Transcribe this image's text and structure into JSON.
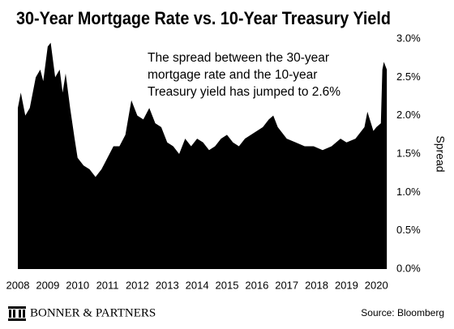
{
  "chart_data": {
    "type": "area",
    "title": "30-Year Mortgage Rate vs. 10-Year Treasury Yield",
    "annotation": [
      "The spread between the 30-year",
      "mortgage rate and the 10-year",
      "Treasury yield has jumped to 2.6%"
    ],
    "y_label": "Spread",
    "x": [
      2008.0,
      2008.1,
      2008.25,
      2008.4,
      2008.6,
      2008.75,
      2008.85,
      2009.0,
      2009.1,
      2009.25,
      2009.4,
      2009.5,
      2009.6,
      2009.75,
      2009.9,
      2010.0,
      2010.2,
      2010.4,
      2010.6,
      2010.8,
      2011.0,
      2011.2,
      2011.4,
      2011.6,
      2011.8,
      2011.9,
      2012.0,
      2012.2,
      2012.4,
      2012.6,
      2012.8,
      2013.0,
      2013.2,
      2013.4,
      2013.6,
      2013.8,
      2014.0,
      2014.2,
      2014.4,
      2014.6,
      2014.8,
      2015.0,
      2015.2,
      2015.4,
      2015.6,
      2015.8,
      2016.0,
      2016.2,
      2016.4,
      2016.55,
      2016.7,
      2016.9,
      2017.0,
      2017.3,
      2017.6,
      2017.9,
      2018.2,
      2018.5,
      2018.8,
      2019.0,
      2019.3,
      2019.6,
      2019.7,
      2019.9,
      2020.0,
      2020.15,
      2020.2,
      2020.25,
      2020.35
    ],
    "series": [
      {
        "name": "Spread",
        "color": "#000000",
        "values": [
          2.1,
          2.3,
          2.0,
          2.1,
          2.5,
          2.6,
          2.45,
          2.9,
          2.95,
          2.5,
          2.6,
          2.3,
          2.55,
          2.1,
          1.7,
          1.45,
          1.35,
          1.3,
          1.2,
          1.3,
          1.45,
          1.6,
          1.6,
          1.75,
          2.2,
          2.1,
          2.0,
          1.95,
          2.1,
          1.9,
          1.85,
          1.65,
          1.6,
          1.5,
          1.7,
          1.6,
          1.7,
          1.65,
          1.55,
          1.6,
          1.7,
          1.75,
          1.65,
          1.6,
          1.7,
          1.75,
          1.8,
          1.85,
          1.95,
          2.0,
          1.85,
          1.75,
          1.7,
          1.65,
          1.6,
          1.6,
          1.55,
          1.6,
          1.7,
          1.65,
          1.7,
          1.85,
          2.05,
          1.8,
          1.85,
          1.9,
          2.6,
          2.7,
          2.6
        ]
      }
    ],
    "xlim": [
      2008,
      2020.4
    ],
    "xticks": [
      2008,
      2009,
      2010,
      2011,
      2012,
      2013,
      2014,
      2015,
      2016,
      2017,
      2018,
      2019,
      2020
    ],
    "ylim": [
      0,
      3
    ],
    "yticks": [
      {
        "value": 0,
        "label": "0.0%"
      },
      {
        "value": 0.5,
        "label": "0.5%"
      },
      {
        "value": 1,
        "label": "1.0%"
      },
      {
        "value": 1.5,
        "label": "1.5%"
      },
      {
        "value": 2,
        "label": "2.0%"
      },
      {
        "value": 2.5,
        "label": "2.5%"
      },
      {
        "value": 3,
        "label": "3.0%"
      }
    ]
  },
  "footer": {
    "brand": "BONNER & PARTNERS",
    "source": "Source: Bloomberg"
  }
}
